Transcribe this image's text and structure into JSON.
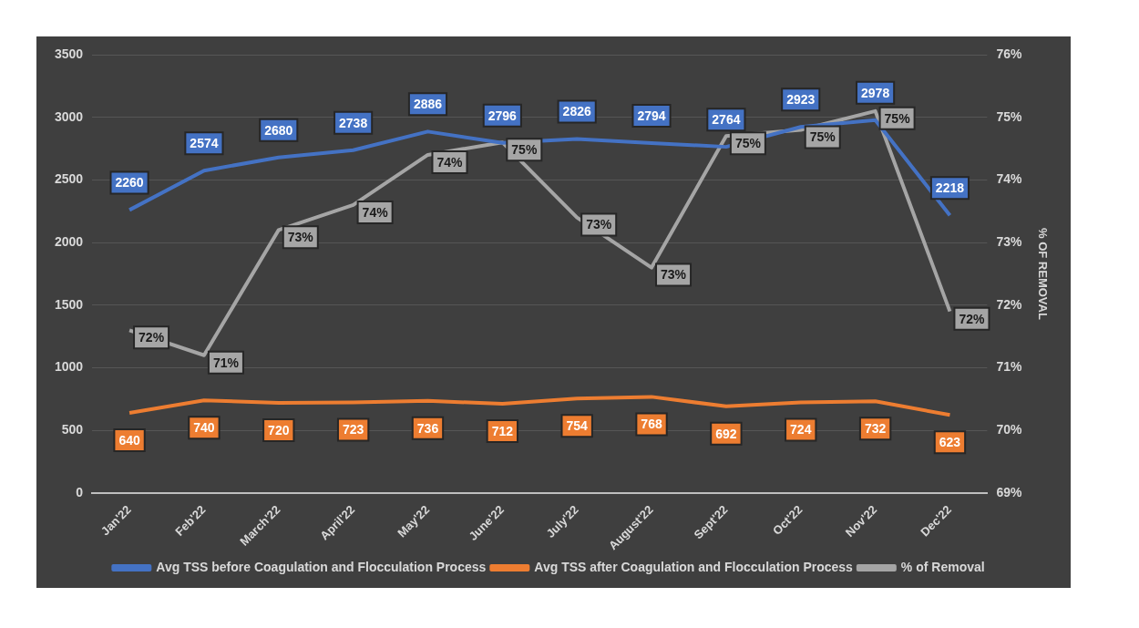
{
  "chart_data": {
    "type": "line",
    "categories": [
      "Jan'22",
      "Feb'22",
      "March'22",
      "April'22",
      "May'22",
      "June'22",
      "July'22",
      "August'22",
      "Sept'22",
      "Oct'22",
      "Nov'22",
      "Dec'22"
    ],
    "series": [
      {
        "name": "Avg TSS before Coagulation and Flocculation Process",
        "color": "#4472c4",
        "values": [
          2260,
          2574,
          2680,
          2738,
          2886,
          2796,
          2826,
          2794,
          2764,
          2923,
          2978,
          2218
        ],
        "value_labels": [
          "2260",
          "2574",
          "2680",
          "2738",
          "2886",
          "2796",
          "2826",
          "2794",
          "2764",
          "2923",
          "2978",
          "2218"
        ]
      },
      {
        "name": "Avg TSS after Coagulation and Flocculation Process",
        "color": "#ed7d31",
        "values": [
          640,
          740,
          720,
          723,
          736,
          712,
          754,
          768,
          692,
          724,
          732,
          623
        ],
        "value_labels": [
          "640",
          "740",
          "720",
          "723",
          "736",
          "712",
          "754",
          "768",
          "692",
          "724",
          "732",
          "623"
        ]
      },
      {
        "name": "% of Removal",
        "color": "#a5a5a5",
        "axis": "y2",
        "values": [
          71.6,
          71.2,
          73.2,
          73.6,
          74.4,
          74.6,
          73.4,
          72.6,
          74.7,
          74.8,
          75.1,
          71.9
        ],
        "value_labels": [
          "72%",
          "71%",
          "73%",
          "74%",
          "74%",
          "75%",
          "73%",
          "73%",
          "75%",
          "75%",
          "75%",
          "72%"
        ]
      }
    ],
    "ylim": [
      0,
      3500
    ],
    "yticks": [
      0,
      500,
      1000,
      1500,
      2000,
      2500,
      3000,
      3500
    ],
    "y2lim": [
      69,
      76
    ],
    "y2ticks": [
      {
        "value": 69,
        "label": "69%"
      },
      {
        "value": 70,
        "label": "70%"
      },
      {
        "value": 71,
        "label": "71%"
      },
      {
        "value": 72,
        "label": "72%"
      },
      {
        "value": 73,
        "label": "73%"
      },
      {
        "value": 74,
        "label": "74%"
      },
      {
        "value": 75,
        "label": "75%"
      },
      {
        "value": 76,
        "label": "76%"
      }
    ],
    "y2label": "% OF REMOVAL",
    "grid": "y",
    "legend": "bottom",
    "marker": "none",
    "line_style": "solid"
  }
}
